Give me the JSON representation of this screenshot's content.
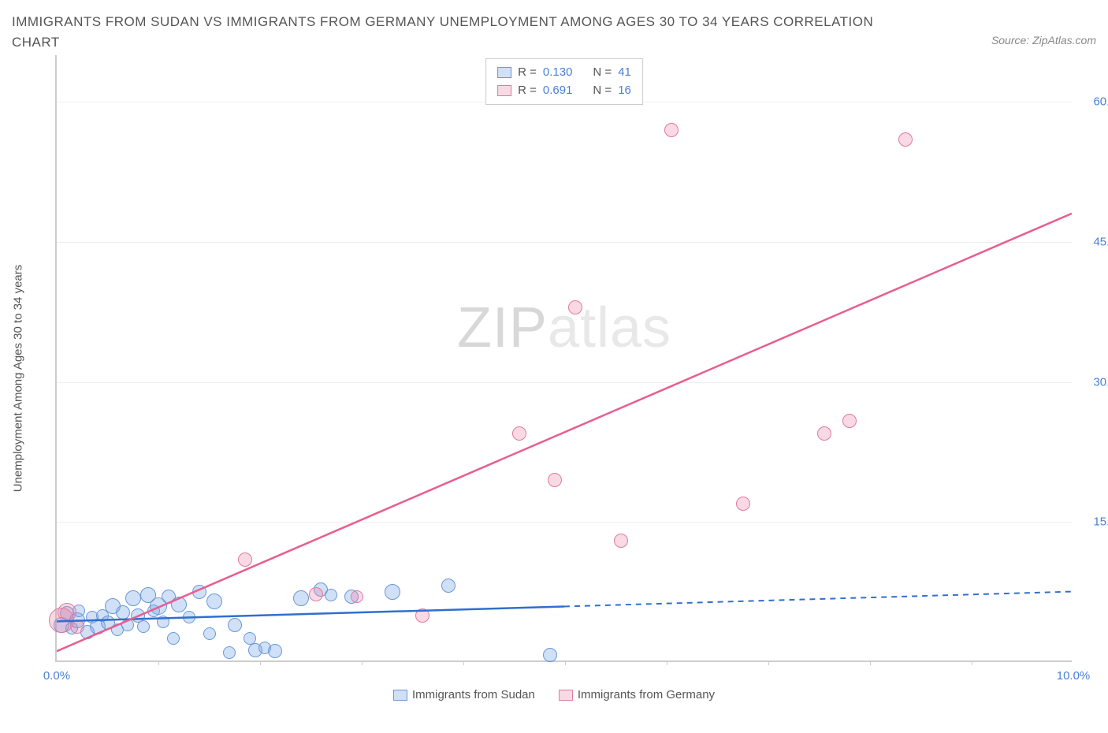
{
  "title": "IMMIGRANTS FROM SUDAN VS IMMIGRANTS FROM GERMANY UNEMPLOYMENT AMONG AGES 30 TO 34 YEARS CORRELATION CHART",
  "source": "Source: ZipAtlas.com",
  "ylabel": "Unemployment Among Ages 30 to 34 years",
  "watermark_a": "ZIP",
  "watermark_b": "atlas",
  "chart": {
    "type": "scatter",
    "xlim": [
      0,
      10
    ],
    "ylim": [
      0,
      65
    ],
    "xtick_labels": {
      "0": "0.0%",
      "10": "10.0%"
    },
    "xtick_minor": [
      1,
      2,
      3,
      4,
      5,
      6,
      7,
      8,
      9
    ],
    "ytick_labels": {
      "15": "15.0%",
      "30": "30.0%",
      "45": "45.0%",
      "60": "60.0%"
    },
    "grid_color": "#eeeeee",
    "axis_color": "#cccccc",
    "background_color": "#ffffff",
    "tick_label_color": "#4a7fd8",
    "axis_label_color": "#555555",
    "series": [
      {
        "name": "Immigrants from Sudan",
        "R": "0.130",
        "N": "41",
        "fill": "rgba(121,165,228,0.35)",
        "stroke": "#6a98d8",
        "line_color": "#2f6fd0",
        "trend": {
          "x1": 0,
          "y1": 4.2,
          "x2": 5.0,
          "y2": 5.8,
          "ext_x2": 10.0,
          "ext_y2": 7.4
        },
        "points": [
          {
            "x": 0.05,
            "y": 4.0,
            "r": 10
          },
          {
            "x": 0.1,
            "y": 5.2,
            "r": 9
          },
          {
            "x": 0.15,
            "y": 3.6,
            "r": 8
          },
          {
            "x": 0.2,
            "y": 4.5,
            "r": 10
          },
          {
            "x": 0.22,
            "y": 5.5,
            "r": 8
          },
          {
            "x": 0.3,
            "y": 3.2,
            "r": 9
          },
          {
            "x": 0.35,
            "y": 4.8,
            "r": 8
          },
          {
            "x": 0.4,
            "y": 3.8,
            "r": 10
          },
          {
            "x": 0.45,
            "y": 5.0,
            "r": 8
          },
          {
            "x": 0.5,
            "y": 4.2,
            "r": 9
          },
          {
            "x": 0.55,
            "y": 6.0,
            "r": 10
          },
          {
            "x": 0.6,
            "y": 3.5,
            "r": 8
          },
          {
            "x": 0.65,
            "y": 5.3,
            "r": 9
          },
          {
            "x": 0.7,
            "y": 4.0,
            "r": 8
          },
          {
            "x": 0.75,
            "y": 6.8,
            "r": 10
          },
          {
            "x": 0.8,
            "y": 5.0,
            "r": 9
          },
          {
            "x": 0.85,
            "y": 3.8,
            "r": 8
          },
          {
            "x": 0.9,
            "y": 7.2,
            "r": 10
          },
          {
            "x": 0.95,
            "y": 5.5,
            "r": 8
          },
          {
            "x": 1.0,
            "y": 6.0,
            "r": 11
          },
          {
            "x": 1.05,
            "y": 4.3,
            "r": 8
          },
          {
            "x": 1.1,
            "y": 7.0,
            "r": 9
          },
          {
            "x": 1.15,
            "y": 2.5,
            "r": 8
          },
          {
            "x": 1.2,
            "y": 6.2,
            "r": 10
          },
          {
            "x": 1.3,
            "y": 4.8,
            "r": 8
          },
          {
            "x": 1.4,
            "y": 7.5,
            "r": 9
          },
          {
            "x": 1.5,
            "y": 3.0,
            "r": 8
          },
          {
            "x": 1.55,
            "y": 6.5,
            "r": 10
          },
          {
            "x": 1.7,
            "y": 1.0,
            "r": 8
          },
          {
            "x": 1.75,
            "y": 4.0,
            "r": 9
          },
          {
            "x": 1.9,
            "y": 2.5,
            "r": 8
          },
          {
            "x": 1.95,
            "y": 1.3,
            "r": 9
          },
          {
            "x": 2.05,
            "y": 1.5,
            "r": 8
          },
          {
            "x": 2.15,
            "y": 1.2,
            "r": 9
          },
          {
            "x": 2.4,
            "y": 6.8,
            "r": 10
          },
          {
            "x": 2.6,
            "y": 7.8,
            "r": 9
          },
          {
            "x": 2.7,
            "y": 7.2,
            "r": 8
          },
          {
            "x": 2.9,
            "y": 7.0,
            "r": 9
          },
          {
            "x": 3.3,
            "y": 7.5,
            "r": 10
          },
          {
            "x": 3.85,
            "y": 8.2,
            "r": 9
          },
          {
            "x": 4.85,
            "y": 0.8,
            "r": 9
          }
        ]
      },
      {
        "name": "Immigrants from Germany",
        "R": "0.691",
        "N": "16",
        "fill": "rgba(235,130,165,0.30)",
        "stroke": "#e07aa0",
        "line_color": "#e85d8f",
        "trend": {
          "x1": 0,
          "y1": 1.0,
          "x2": 10.0,
          "y2": 48.0
        },
        "points": [
          {
            "x": 0.05,
            "y": 4.5,
            "r": 16
          },
          {
            "x": 0.1,
            "y": 5.3,
            "r": 12
          },
          {
            "x": 0.2,
            "y": 3.8,
            "r": 9
          },
          {
            "x": 1.85,
            "y": 11.0,
            "r": 9
          },
          {
            "x": 2.55,
            "y": 7.3,
            "r": 9
          },
          {
            "x": 2.95,
            "y": 7.0,
            "r": 8
          },
          {
            "x": 3.6,
            "y": 5.0,
            "r": 9
          },
          {
            "x": 4.55,
            "y": 24.5,
            "r": 9
          },
          {
            "x": 4.9,
            "y": 19.5,
            "r": 9
          },
          {
            "x": 5.1,
            "y": 38.0,
            "r": 9
          },
          {
            "x": 5.55,
            "y": 13.0,
            "r": 9
          },
          {
            "x": 6.05,
            "y": 57.0,
            "r": 9
          },
          {
            "x": 6.75,
            "y": 17.0,
            "r": 9
          },
          {
            "x": 7.55,
            "y": 24.5,
            "r": 9
          },
          {
            "x": 7.8,
            "y": 25.8,
            "r": 9
          },
          {
            "x": 8.35,
            "y": 56.0,
            "r": 9
          }
        ]
      }
    ]
  },
  "legend_top": {
    "r_label": "R =",
    "n_label": "N ="
  }
}
